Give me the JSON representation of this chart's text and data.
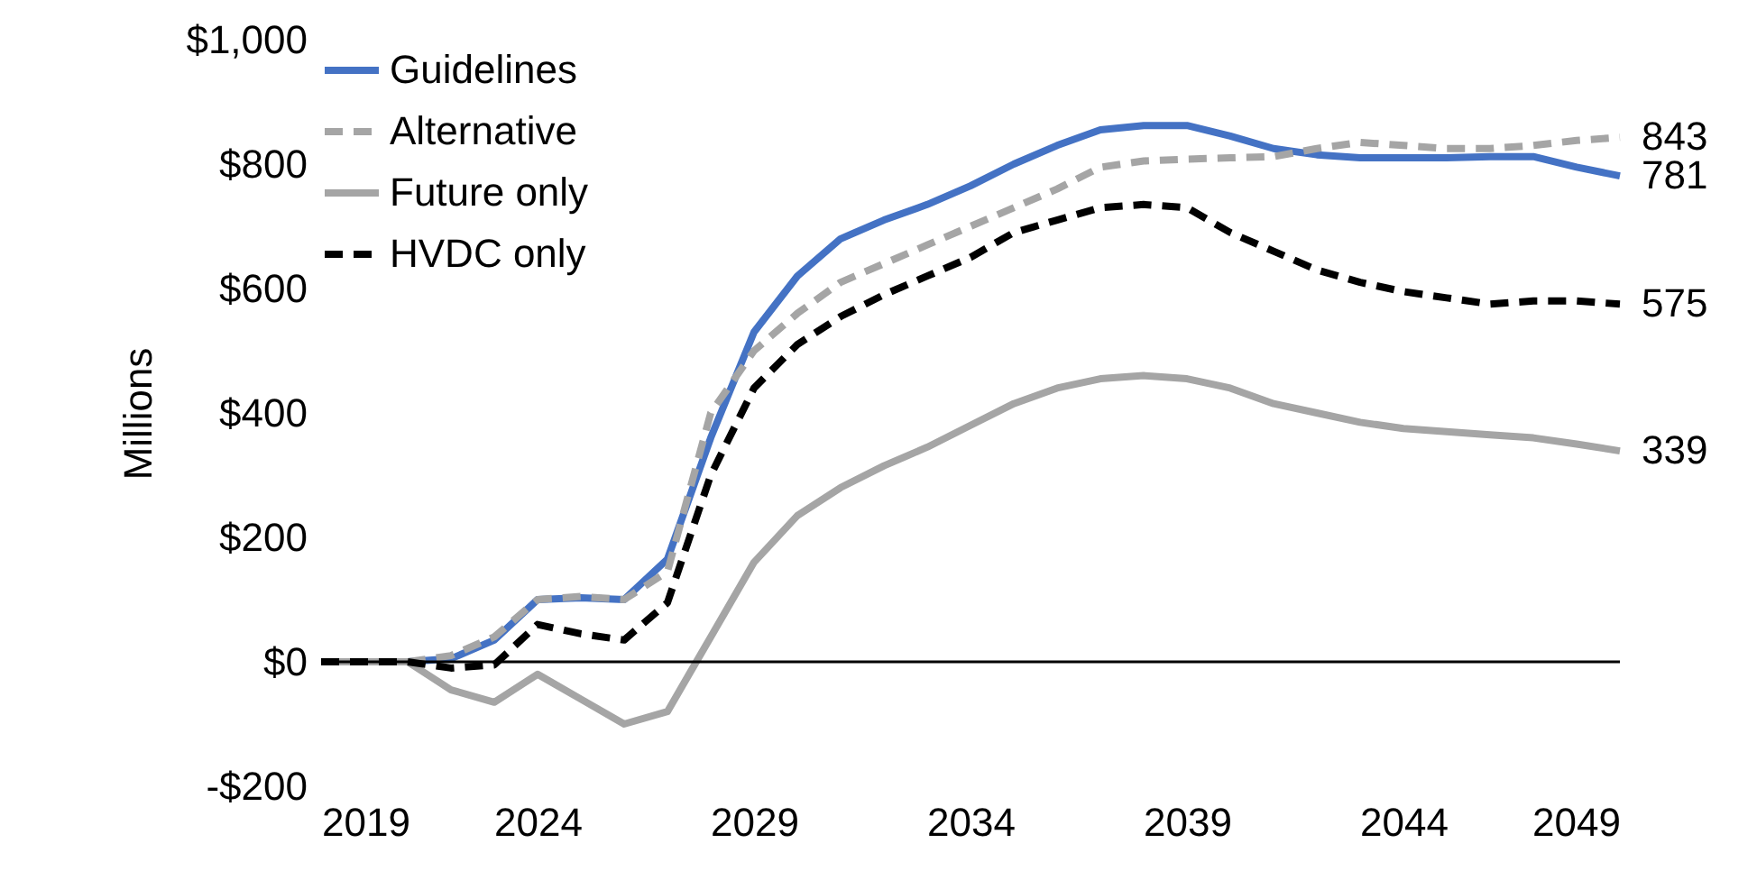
{
  "chart_data": {
    "type": "line",
    "ylabel": "Millions",
    "x": [
      2019,
      2020,
      2021,
      2022,
      2023,
      2024,
      2025,
      2026,
      2027,
      2028,
      2029,
      2030,
      2031,
      2032,
      2033,
      2034,
      2035,
      2036,
      2037,
      2038,
      2039,
      2040,
      2041,
      2042,
      2043,
      2044,
      2045,
      2046,
      2047,
      2048,
      2049
    ],
    "xlim": [
      2019,
      2049
    ],
    "xticks": [
      2019,
      2024,
      2029,
      2034,
      2039,
      2044,
      2049
    ],
    "ylim": [
      -200,
      1000
    ],
    "yticks": [
      {
        "value": -200,
        "label": "-$200"
      },
      {
        "value": 0,
        "label": "$0"
      },
      {
        "value": 200,
        "label": "$200"
      },
      {
        "value": 400,
        "label": "$400"
      },
      {
        "value": 600,
        "label": "$600"
      },
      {
        "value": 800,
        "label": "$800"
      },
      {
        "value": 1000,
        "label": "$1,000"
      }
    ],
    "grid": false,
    "legend": "top left",
    "ref_lines": [
      {
        "axis": "y",
        "value": 0,
        "color": "#000000"
      }
    ],
    "series": [
      {
        "name": "Guidelines",
        "color": "#4472c4",
        "line_style": "solid",
        "values": [
          0,
          0,
          0,
          5,
          35,
          100,
          103,
          100,
          165,
          360,
          530,
          620,
          680,
          710,
          735,
          765,
          800,
          830,
          855,
          862,
          862,
          845,
          825,
          815,
          810,
          810,
          810,
          812,
          812,
          795,
          781
        ],
        "value_labels": [
          null,
          null,
          null,
          null,
          null,
          null,
          null,
          null,
          null,
          null,
          null,
          null,
          null,
          null,
          null,
          null,
          null,
          null,
          null,
          null,
          null,
          null,
          null,
          null,
          null,
          null,
          null,
          null,
          null,
          null,
          "781"
        ]
      },
      {
        "name": "Alternative",
        "color": "#a5a5a5",
        "line_style": "dashed",
        "values": [
          0,
          0,
          0,
          10,
          40,
          100,
          105,
          100,
          145,
          400,
          500,
          560,
          610,
          640,
          670,
          700,
          730,
          760,
          795,
          805,
          808,
          810,
          812,
          825,
          835,
          830,
          825,
          825,
          830,
          838,
          843
        ],
        "value_labels": [
          null,
          null,
          null,
          null,
          null,
          null,
          null,
          null,
          null,
          null,
          null,
          null,
          null,
          null,
          null,
          null,
          null,
          null,
          null,
          null,
          null,
          null,
          null,
          null,
          null,
          null,
          null,
          null,
          null,
          null,
          "843"
        ]
      },
      {
        "name": "Future only",
        "color": "#a5a5a5",
        "line_style": "solid",
        "values": [
          0,
          0,
          0,
          -45,
          -65,
          -20,
          -60,
          -100,
          -80,
          40,
          160,
          235,
          280,
          315,
          345,
          380,
          415,
          440,
          455,
          460,
          455,
          440,
          415,
          400,
          385,
          375,
          370,
          365,
          360,
          350,
          339
        ],
        "value_labels": [
          null,
          null,
          null,
          null,
          null,
          null,
          null,
          null,
          null,
          null,
          null,
          null,
          null,
          null,
          null,
          null,
          null,
          null,
          null,
          null,
          null,
          null,
          null,
          null,
          null,
          null,
          null,
          null,
          null,
          null,
          "339"
        ]
      },
      {
        "name": "HVDC only",
        "color": "#000000",
        "line_style": "dashed",
        "values": [
          0,
          0,
          0,
          -10,
          -5,
          60,
          45,
          35,
          95,
          300,
          440,
          510,
          555,
          590,
          620,
          650,
          690,
          710,
          730,
          735,
          730,
          690,
          660,
          630,
          610,
          595,
          585,
          575,
          580,
          580,
          575
        ],
        "value_labels": [
          null,
          null,
          null,
          null,
          null,
          null,
          null,
          null,
          null,
          null,
          null,
          null,
          null,
          null,
          null,
          null,
          null,
          null,
          null,
          null,
          null,
          null,
          null,
          null,
          null,
          null,
          null,
          null,
          null,
          null,
          "575"
        ]
      }
    ]
  }
}
